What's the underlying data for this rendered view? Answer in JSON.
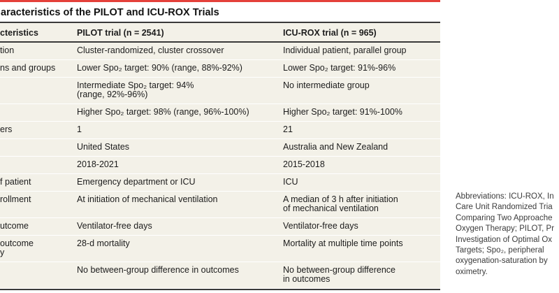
{
  "page": {
    "title_fragment": "aracteristics of the PILOT and ICU-ROX Trials"
  },
  "table": {
    "header": {
      "label": "cteristics",
      "pilot": "PILOT trial (n = 2541)",
      "icurox": "ICU-ROX trial (n = 965)"
    },
    "rows": [
      {
        "label": "tion",
        "pilot": "Cluster-randomized, cluster crossover",
        "icurox": "Individual patient, parallel group"
      },
      {
        "label": "ns and groups",
        "pilot": "Lower Spo₂ target: 90% (range, 88%-92%)",
        "icurox": "Lower Spo₂ target: 91%-96%"
      },
      {
        "label": "",
        "pilot": "Intermediate Spo₂ target: 94%\n(range, 92%-96%)",
        "icurox": "No intermediate group"
      },
      {
        "label": "",
        "pilot": "Higher Spo₂ target: 98% (range, 96%-100%)",
        "icurox": "Higher Spo₂ target: 91%-100%"
      },
      {
        "label": "ers",
        "pilot": "1",
        "icurox": "21"
      },
      {
        "label": "",
        "pilot": "United States",
        "icurox": "Australia and New Zealand"
      },
      {
        "label": "",
        "pilot": "2018-2021",
        "icurox": "2015-2018"
      },
      {
        "label": "f patient",
        "pilot": "Emergency department or ICU",
        "icurox": "ICU"
      },
      {
        "label": "rollment",
        "pilot": "At initiation of mechanical ventilation",
        "icurox": "A median of 3 h after initiation\nof mechanical ventilation"
      },
      {
        "label": "utcome",
        "pilot": "Ventilator-free days",
        "icurox": "Ventilator-free days"
      },
      {
        "label": "outcome\ny",
        "pilot": "28-d mortality",
        "icurox": "Mortality at multiple time points"
      },
      {
        "label": "",
        "pilot": "No between-group difference in outcomes",
        "icurox": "No between-group difference\nin outcomes"
      }
    ]
  },
  "note": {
    "lines": [
      "Abbreviations: ICU-ROX, In",
      "Care Unit Randomized Tria",
      "Comparing Two Approache",
      "Oxygen Therapy; PILOT, Pr",
      "Investigation of Optimal Ox",
      "Targets; Spo₂, peripheral",
      "oxygenation-saturation by",
      "oximetry."
    ]
  },
  "colors": {
    "accent_red": "#e4403a",
    "row_band": "#f3f1e8",
    "rule_dark": "#3a3a3a",
    "note_text": "#3b3b3b"
  }
}
